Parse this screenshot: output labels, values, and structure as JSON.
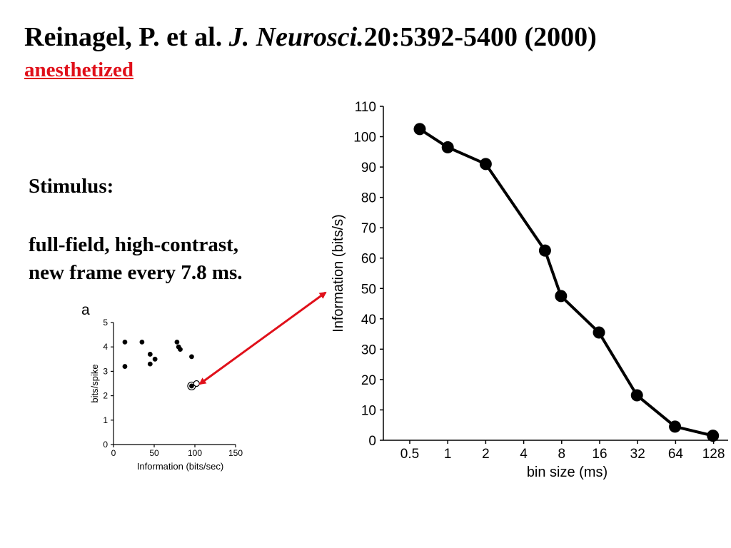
{
  "slide": {
    "citation_authors": "Reinagel, P. et al.",
    "citation_journal_abbr_j": "J.",
    "citation_journal_name": "Neurosci.",
    "citation_rest": "20:5392-5400 (2000)",
    "condition": "anesthetized",
    "stimulus_heading": "Stimulus:",
    "stimulus_line1": "full-field, high-contrast,",
    "stimulus_line2": "new frame every 7.8 ms."
  },
  "colors": {
    "condition": "#e0101a",
    "arrow": "#e0101a",
    "ink": "#000000"
  },
  "chart_data": [
    {
      "type": "line",
      "panel_label": "",
      "xlabel": "bin size (ms)",
      "ylabel": "Information (bits/s)",
      "x_scale": "log2",
      "categories": [
        "0.5",
        "1",
        "2",
        "4",
        "8",
        "16",
        "32",
        "64",
        "128"
      ],
      "ylim": [
        0,
        110
      ],
      "y_ticks": [
        0,
        10,
        20,
        30,
        40,
        50,
        60,
        70,
        80,
        90,
        100,
        110
      ],
      "grid": false,
      "x": [
        0.6,
        1.0,
        2.0,
        5.9,
        7.9,
        15.8,
        31.6,
        63.3,
        126.5
      ],
      "y": [
        102.5,
        96.5,
        91.0,
        62.5,
        47.5,
        35.5,
        14.8,
        4.5,
        1.5
      ]
    },
    {
      "type": "scatter",
      "panel_label": "a",
      "xlabel": "Information (bits/sec)",
      "ylabel": "bits/spike",
      "xlim": [
        0,
        150
      ],
      "ylim": [
        0,
        5
      ],
      "x_ticks": [
        0,
        50,
        100,
        150
      ],
      "y_ticks": [
        0,
        1,
        2,
        3,
        4,
        5
      ],
      "grid": false,
      "points": [
        {
          "x": 14,
          "y": 4.2
        },
        {
          "x": 14,
          "y": 3.2
        },
        {
          "x": 35,
          "y": 4.2
        },
        {
          "x": 45,
          "y": 3.7
        },
        {
          "x": 45,
          "y": 3.3
        },
        {
          "x": 51,
          "y": 3.5
        },
        {
          "x": 78,
          "y": 4.2
        },
        {
          "x": 80,
          "y": 4.0
        },
        {
          "x": 82,
          "y": 3.9
        },
        {
          "x": 96,
          "y": 3.6
        },
        {
          "x": 96,
          "y": 2.4
        }
      ],
      "highlight_points": [
        {
          "x": 96,
          "y": 2.4,
          "style": "circled"
        },
        {
          "x": 102,
          "y": 2.5,
          "style": "open"
        }
      ]
    }
  ]
}
